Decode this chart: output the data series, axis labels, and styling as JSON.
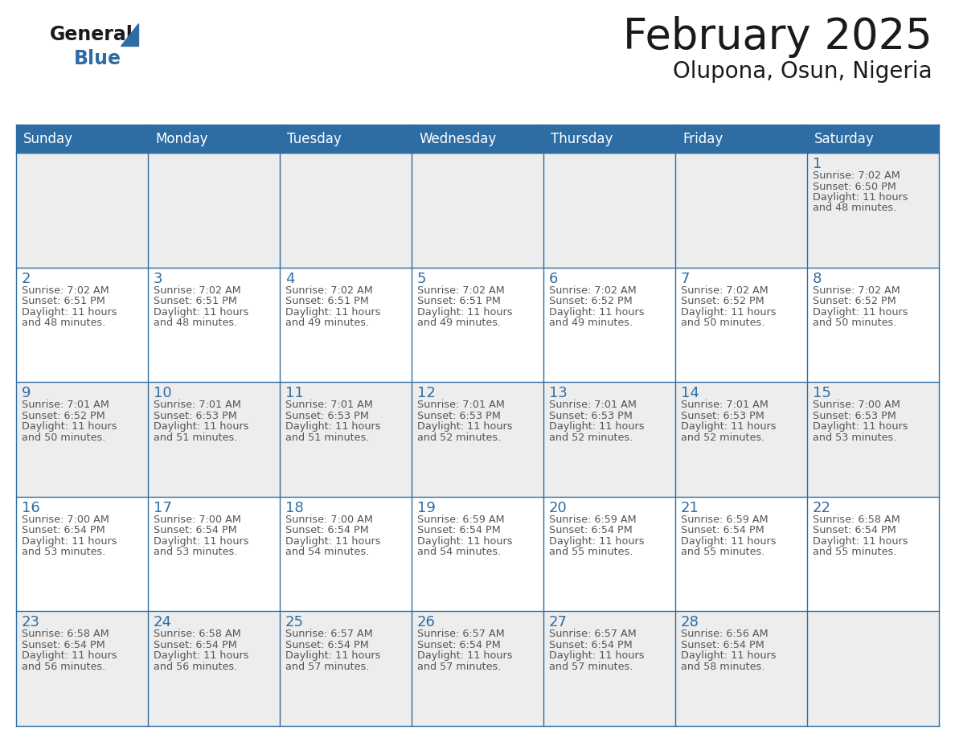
{
  "title": "February 2025",
  "subtitle": "Olupona, Osun, Nigeria",
  "days_of_week": [
    "Sunday",
    "Monday",
    "Tuesday",
    "Wednesday",
    "Thursday",
    "Friday",
    "Saturday"
  ],
  "header_bg": "#2E6DA4",
  "header_text": "#FFFFFF",
  "cell_bg_odd": "#EDEDED",
  "cell_bg_even": "#FFFFFF",
  "border_color": "#2E6DA4",
  "day_number_color": "#2E6DA4",
  "info_text_color": "#555555",
  "title_color": "#1a1a1a",
  "logo_general_color": "#1a1a1a",
  "logo_blue_color": "#2E6DA4",
  "calendar_data": [
    [
      {
        "day": "",
        "sunrise": "",
        "sunset": "",
        "daylight": ""
      },
      {
        "day": "",
        "sunrise": "",
        "sunset": "",
        "daylight": ""
      },
      {
        "day": "",
        "sunrise": "",
        "sunset": "",
        "daylight": ""
      },
      {
        "day": "",
        "sunrise": "",
        "sunset": "",
        "daylight": ""
      },
      {
        "day": "",
        "sunrise": "",
        "sunset": "",
        "daylight": ""
      },
      {
        "day": "",
        "sunrise": "",
        "sunset": "",
        "daylight": ""
      },
      {
        "day": "1",
        "sunrise": "7:02 AM",
        "sunset": "6:50 PM",
        "daylight": "11 hours and 48 minutes."
      }
    ],
    [
      {
        "day": "2",
        "sunrise": "7:02 AM",
        "sunset": "6:51 PM",
        "daylight": "11 hours and 48 minutes."
      },
      {
        "day": "3",
        "sunrise": "7:02 AM",
        "sunset": "6:51 PM",
        "daylight": "11 hours and 48 minutes."
      },
      {
        "day": "4",
        "sunrise": "7:02 AM",
        "sunset": "6:51 PM",
        "daylight": "11 hours and 49 minutes."
      },
      {
        "day": "5",
        "sunrise": "7:02 AM",
        "sunset": "6:51 PM",
        "daylight": "11 hours and 49 minutes."
      },
      {
        "day": "6",
        "sunrise": "7:02 AM",
        "sunset": "6:52 PM",
        "daylight": "11 hours and 49 minutes."
      },
      {
        "day": "7",
        "sunrise": "7:02 AM",
        "sunset": "6:52 PM",
        "daylight": "11 hours and 50 minutes."
      },
      {
        "day": "8",
        "sunrise": "7:02 AM",
        "sunset": "6:52 PM",
        "daylight": "11 hours and 50 minutes."
      }
    ],
    [
      {
        "day": "9",
        "sunrise": "7:01 AM",
        "sunset": "6:52 PM",
        "daylight": "11 hours and 50 minutes."
      },
      {
        "day": "10",
        "sunrise": "7:01 AM",
        "sunset": "6:53 PM",
        "daylight": "11 hours and 51 minutes."
      },
      {
        "day": "11",
        "sunrise": "7:01 AM",
        "sunset": "6:53 PM",
        "daylight": "11 hours and 51 minutes."
      },
      {
        "day": "12",
        "sunrise": "7:01 AM",
        "sunset": "6:53 PM",
        "daylight": "11 hours and 52 minutes."
      },
      {
        "day": "13",
        "sunrise": "7:01 AM",
        "sunset": "6:53 PM",
        "daylight": "11 hours and 52 minutes."
      },
      {
        "day": "14",
        "sunrise": "7:01 AM",
        "sunset": "6:53 PM",
        "daylight": "11 hours and 52 minutes."
      },
      {
        "day": "15",
        "sunrise": "7:00 AM",
        "sunset": "6:53 PM",
        "daylight": "11 hours and 53 minutes."
      }
    ],
    [
      {
        "day": "16",
        "sunrise": "7:00 AM",
        "sunset": "6:54 PM",
        "daylight": "11 hours and 53 minutes."
      },
      {
        "day": "17",
        "sunrise": "7:00 AM",
        "sunset": "6:54 PM",
        "daylight": "11 hours and 53 minutes."
      },
      {
        "day": "18",
        "sunrise": "7:00 AM",
        "sunset": "6:54 PM",
        "daylight": "11 hours and 54 minutes."
      },
      {
        "day": "19",
        "sunrise": "6:59 AM",
        "sunset": "6:54 PM",
        "daylight": "11 hours and 54 minutes."
      },
      {
        "day": "20",
        "sunrise": "6:59 AM",
        "sunset": "6:54 PM",
        "daylight": "11 hours and 55 minutes."
      },
      {
        "day": "21",
        "sunrise": "6:59 AM",
        "sunset": "6:54 PM",
        "daylight": "11 hours and 55 minutes."
      },
      {
        "day": "22",
        "sunrise": "6:58 AM",
        "sunset": "6:54 PM",
        "daylight": "11 hours and 55 minutes."
      }
    ],
    [
      {
        "day": "23",
        "sunrise": "6:58 AM",
        "sunset": "6:54 PM",
        "daylight": "11 hours and 56 minutes."
      },
      {
        "day": "24",
        "sunrise": "6:58 AM",
        "sunset": "6:54 PM",
        "daylight": "11 hours and 56 minutes."
      },
      {
        "day": "25",
        "sunrise": "6:57 AM",
        "sunset": "6:54 PM",
        "daylight": "11 hours and 57 minutes."
      },
      {
        "day": "26",
        "sunrise": "6:57 AM",
        "sunset": "6:54 PM",
        "daylight": "11 hours and 57 minutes."
      },
      {
        "day": "27",
        "sunrise": "6:57 AM",
        "sunset": "6:54 PM",
        "daylight": "11 hours and 57 minutes."
      },
      {
        "day": "28",
        "sunrise": "6:56 AM",
        "sunset": "6:54 PM",
        "daylight": "11 hours and 58 minutes."
      },
      {
        "day": "",
        "sunrise": "",
        "sunset": "",
        "daylight": ""
      }
    ]
  ]
}
